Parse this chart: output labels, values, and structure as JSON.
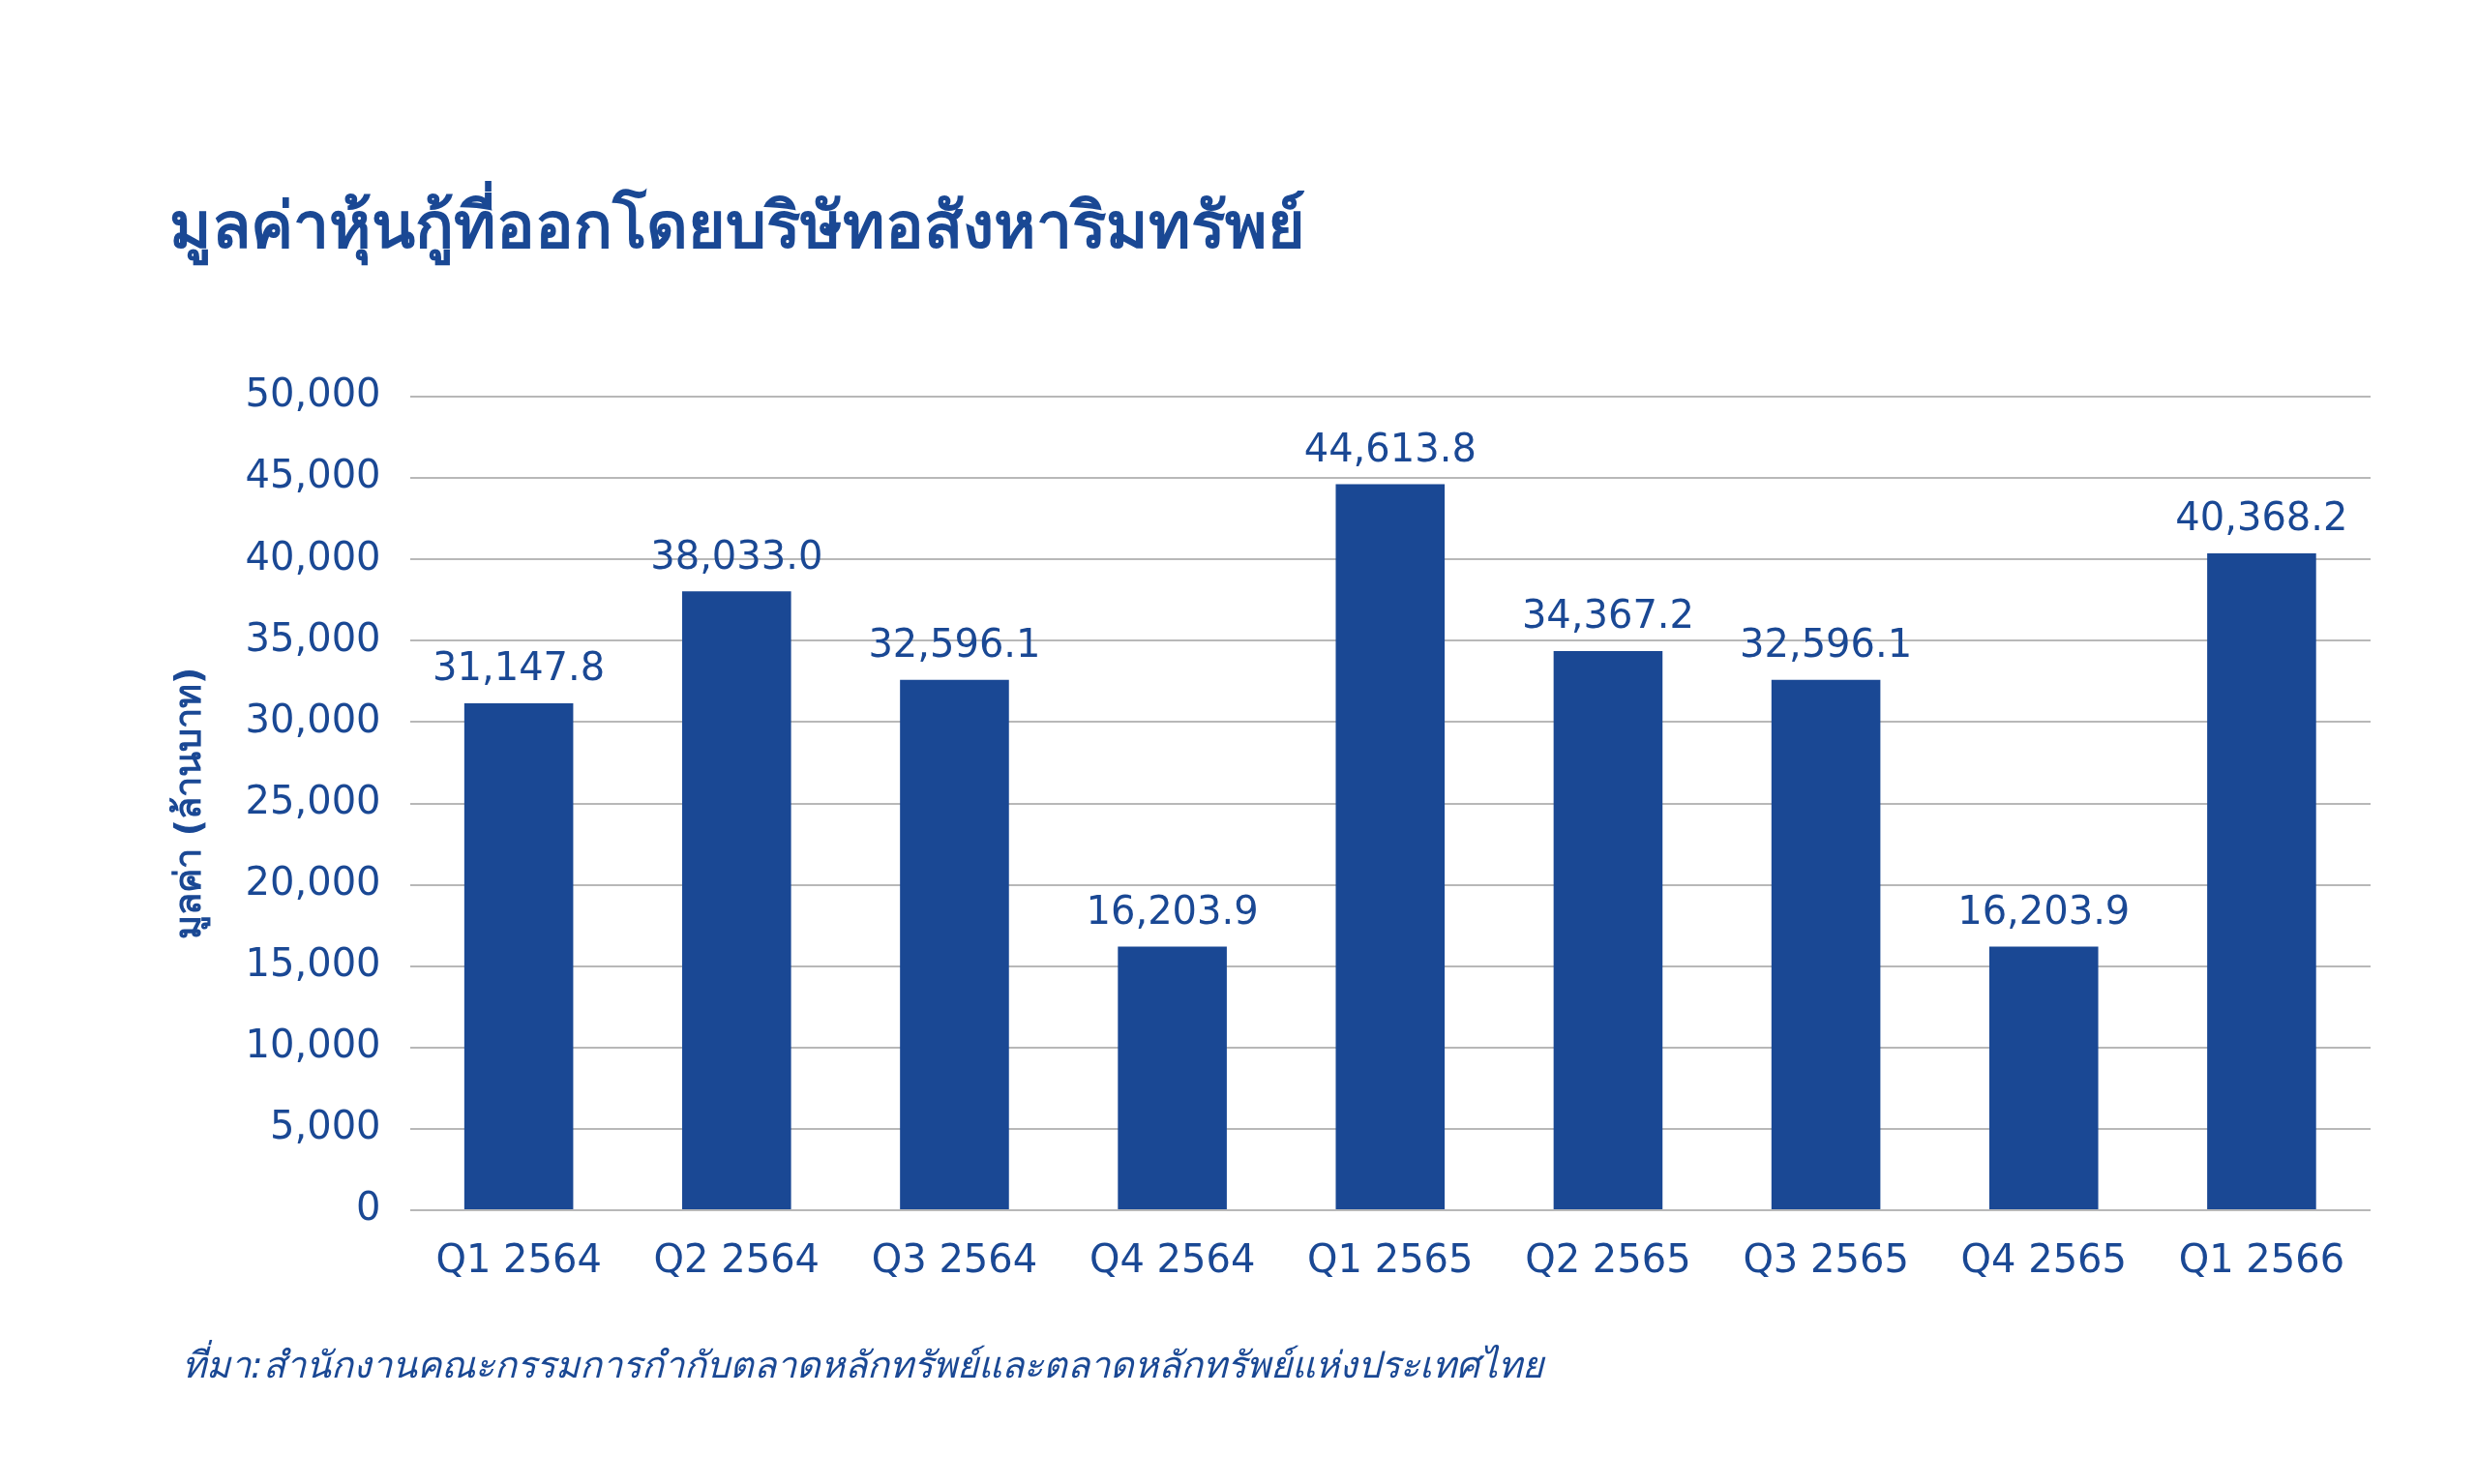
{
  "chart_data": {
    "type": "bar",
    "title": "มูลค่าหุ้นกู้ที่ออกโดยบริษัทอสังหาริมทรัพย์",
    "ylabel": "มูลค่า (ล้านบาท)",
    "categories": [
      "Q1 2564",
      "Q2 2564",
      "Q3 2564",
      "Q4 2564",
      "Q1 2565",
      "Q2 2565",
      "Q3 2565",
      "Q4 2565",
      "Q1 2566"
    ],
    "values": [
      31147.8,
      38033.0,
      32596.1,
      16203.9,
      44613.8,
      34367.2,
      32596.1,
      16203.9,
      40368.2
    ],
    "value_labels": [
      "31,147.8",
      "38,033.0",
      "32,596.1",
      "16,203.9",
      "44,613.8",
      "34,367.2",
      "32,596.1",
      "16,203.9",
      "40,368.2"
    ],
    "color": "#1a4894",
    "ylim": [
      0,
      50000
    ],
    "yticks": [
      0,
      {
        "value": 5000,
        "label": "5,000"
      },
      {
        "value": 10000,
        "label": "10,000"
      },
      {
        "value": 15000,
        "label": "15,000"
      },
      {
        "value": 20000,
        "label": "20,000"
      },
      {
        "value": 25000,
        "label": "25,000"
      },
      {
        "value": 30000,
        "label": "30,000"
      },
      {
        "value": 35000,
        "label": "35,000"
      },
      {
        "value": 40000,
        "label": "40,000"
      },
      {
        "value": 45000,
        "label": "45,000"
      },
      {
        "value": 50000,
        "label": "50,000"
      }
    ],
    "grid": "y",
    "legend": false,
    "annotations": [
      "ที่มา:สำนักงานคณะกรรมการกำกับตลาดหลักทรัพย์และตลาดหลักทรัพย์แห่งประเทศไทย"
    ]
  }
}
